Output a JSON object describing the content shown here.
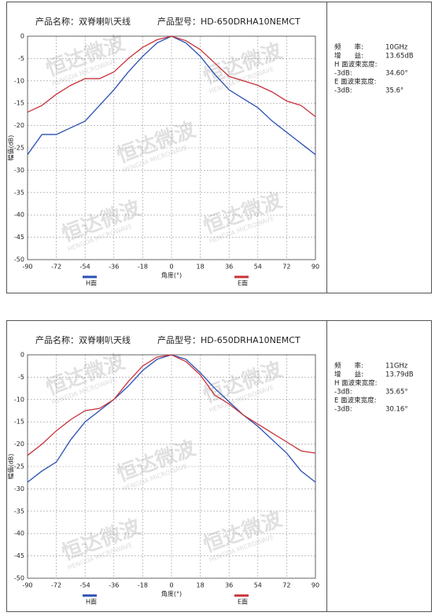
{
  "chart_data": [
    {
      "type": "line",
      "title": "产品名称：双脊喇叭天线",
      "model": "产品型号：HD-650DRHA10NEMCT",
      "xlabel": "角度(°)",
      "ylabel": "幅值(dB)",
      "grid": true,
      "legend": "bottom",
      "watermark": "恒达微波",
      "watermark_sub": "HENGDA MICROWAVE",
      "x": [
        -90,
        -81,
        -72,
        -63,
        -54,
        -45,
        -36,
        -27,
        -18,
        -9,
        0,
        9,
        18,
        27,
        36,
        45,
        54,
        63,
        72,
        81,
        90
      ],
      "xlim": [
        -90,
        90
      ],
      "xticks": [
        -90,
        -72,
        -54,
        -36,
        -18,
        0,
        18,
        36,
        54,
        72,
        90
      ],
      "ylim": [
        -50,
        0
      ],
      "yticks": [
        0,
        -5,
        -10,
        -15,
        -20,
        -25,
        -30,
        -35,
        -40,
        -45,
        -50
      ],
      "series": [
        {
          "name": "H面",
          "color": "#2a4fb5",
          "values": [
            -26.5,
            -22,
            -22,
            -20.5,
            -19,
            -15.5,
            -12,
            -8,
            -4.5,
            -1.5,
            0,
            -1.5,
            -4.5,
            -8.5,
            -12,
            -14,
            -16,
            -19,
            -21.5,
            -24,
            -26.5
          ]
        },
        {
          "name": "E面",
          "color": "#c8333a",
          "values": [
            -17,
            -15.5,
            -13,
            -11,
            -9.5,
            -9.5,
            -8,
            -5,
            -2.5,
            -0.8,
            0,
            -1,
            -3,
            -6,
            -9,
            -10,
            -11,
            -12.5,
            -14.5,
            -15.5,
            -18
          ]
        }
      ],
      "specs": [
        {
          "label": "频　　率:",
          "value": "10GHz"
        },
        {
          "label": "增　　益:",
          "value": "13.65dB"
        },
        {
          "label": "H 面波束宽度:"
        },
        {
          "label": "-3dB:",
          "value": "34.60°"
        },
        {
          "label": "E 面波束宽度:"
        },
        {
          "label": "-3dB:",
          "value": "35.6°"
        }
      ]
    },
    {
      "type": "line",
      "title": "产品名称：双脊喇叭天线",
      "model": "产品型号：HD-650DRHA10NEMCT",
      "xlabel": "角度(°)",
      "ylabel": "幅值(dB)",
      "grid": true,
      "legend": "bottom",
      "watermark": "恒达微波",
      "watermark_sub": "HENGDA MICROWAVE",
      "x": [
        -90,
        -81,
        -72,
        -63,
        -54,
        -45,
        -36,
        -27,
        -18,
        -9,
        0,
        9,
        18,
        27,
        36,
        45,
        54,
        63,
        72,
        81,
        90
      ],
      "xlim": [
        -90,
        90
      ],
      "xticks": [
        -90,
        -72,
        -54,
        -36,
        -18,
        0,
        18,
        36,
        54,
        72,
        90
      ],
      "ylim": [
        -50,
        0
      ],
      "yticks": [
        0,
        -5,
        -10,
        -15,
        -20,
        -25,
        -30,
        -35,
        -40,
        -45,
        -50
      ],
      "series": [
        {
          "name": "H面",
          "color": "#2a4fb5",
          "values": [
            -28.5,
            -26,
            -24,
            -19,
            -15,
            -12.5,
            -10,
            -7,
            -3.5,
            -1,
            0,
            -1,
            -4,
            -7.5,
            -10.5,
            -13.5,
            -16,
            -19,
            -22,
            -26,
            -28.5
          ]
        },
        {
          "name": "E面",
          "color": "#c8333a",
          "values": [
            -22.5,
            -20,
            -17,
            -14.5,
            -12.5,
            -12,
            -10,
            -6,
            -2.5,
            -0.5,
            0,
            -1.5,
            -4.5,
            -9,
            -11,
            -13.5,
            -15.5,
            -17.5,
            -19.5,
            -21.5,
            -22
          ]
        }
      ],
      "specs": [
        {
          "label": "频　　率:",
          "value": "11GHz"
        },
        {
          "label": "增　　益:",
          "value": "13.79dB"
        },
        {
          "label": "H 面波束宽度:"
        },
        {
          "label": "-3dB:",
          "value": "35.65°"
        },
        {
          "label": "E 面波束宽度:"
        },
        {
          "label": "-3dB:",
          "value": "30.16°"
        }
      ]
    }
  ]
}
